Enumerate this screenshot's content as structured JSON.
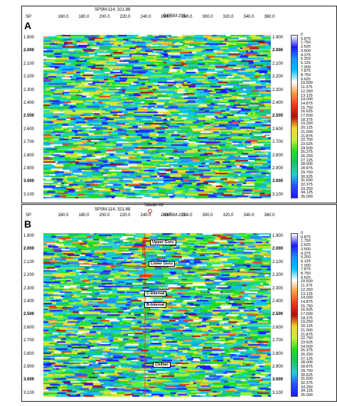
{
  "colors": {
    "palette": [
      "#1a1aff",
      "#2a4cff",
      "#1e90ff",
      "#00bfff",
      "#1fd0d0",
      "#20c060",
      "#22dd22",
      "#66ee44",
      "#c8ec3a",
      "#f2d430",
      "#ffffff",
      "#ff9a3a",
      "#ee3a1a",
      "#b01010"
    ],
    "horizon": "#e02020",
    "well_marker": "#e02020"
  },
  "panels": [
    {
      "letter": "A",
      "sp_label": "SP",
      "line_top_left": "SPSM-114, 321.88",
      "line_top_center": "- GIPSM-201 -",
      "well_name": "",
      "x_ticks": [
        "160.0",
        "180.0",
        "200.0",
        "220.0",
        "240.0",
        "260.0",
        "280.0",
        "300.0",
        "320.0",
        "340.0",
        "360.0"
      ],
      "y_ticks": [
        "1.900",
        "2.000",
        "2.100",
        "2.200",
        "2.300",
        "2.400",
        "2.500",
        "2.600",
        "2.700",
        "2.800",
        "2.900",
        "3.000",
        "3.100"
      ],
      "y_bold": [
        "2.000",
        "2.500",
        "3.000"
      ],
      "annotations": []
    },
    {
      "letter": "B",
      "sp_label": "SP",
      "line_top_left": "SPSM-114, 321.88",
      "line_top_center": "- GIPSM-201 -",
      "well_name": "Sawan-02",
      "well_vertical": "SAWAN-02",
      "x_ticks": [
        "160.0",
        "180.0",
        "200.0",
        "220.0",
        "240.0",
        "260.0",
        "280.0",
        "300.0",
        "320.0",
        "340.0",
        "360.0"
      ],
      "y_ticks": [
        "1.900",
        "2.000",
        "2.100",
        "2.200",
        "2.300",
        "2.400",
        "2.500",
        "2.600",
        "2.700",
        "2.800",
        "2.900",
        "3.000",
        "3.100"
      ],
      "y_bold": [
        "2.000",
        "2.500",
        "3.000"
      ],
      "annotations": [
        "Upper Goru",
        "Lower Goru",
        "C-Interval",
        "B-Interval",
        "Chiltan"
      ]
    }
  ],
  "colorbar_labels": [
    "0",
    "0.875",
    "1.750",
    "2.625",
    "3.500",
    "4.375",
    "5.250",
    "6.125",
    "7.000",
    "7.875",
    "8.750",
    "9.625",
    "10.500",
    "11.375",
    "12.250",
    "13.125",
    "14.000",
    "14.875",
    "15.750",
    "16.625",
    "17.500",
    "18.375",
    "19.250",
    "20.125",
    "21.000",
    "21.875",
    "22.750",
    "23.625",
    "24.500",
    "25.375",
    "26.250",
    "27.125",
    "28.000",
    "28.875",
    "29.750",
    "30.625",
    "31.500",
    "32.375",
    "33.250",
    "34.125",
    "35.000"
  ],
  "colorbar_labels_b": [
    "0",
    "0.875",
    "1.750",
    "2.625",
    "3.500",
    "4.375",
    "5.250",
    "6.125",
    "7.000",
    "7.875",
    "8.750",
    "9.625",
    "10.500",
    "11.375",
    "12.250",
    "13.125",
    "14.000",
    "14.875",
    "15.750",
    "16.625",
    "17.500",
    "18.375",
    "19.250",
    "20.125",
    "21.000",
    "21.875",
    "22.750",
    "23.625",
    "24.500",
    "25.375",
    "26.250",
    "27.125",
    "28.000",
    "28.875",
    "29.750",
    "30.625",
    "31.500",
    "32.375",
    "33.250",
    "34.125",
    "35.000"
  ]
}
